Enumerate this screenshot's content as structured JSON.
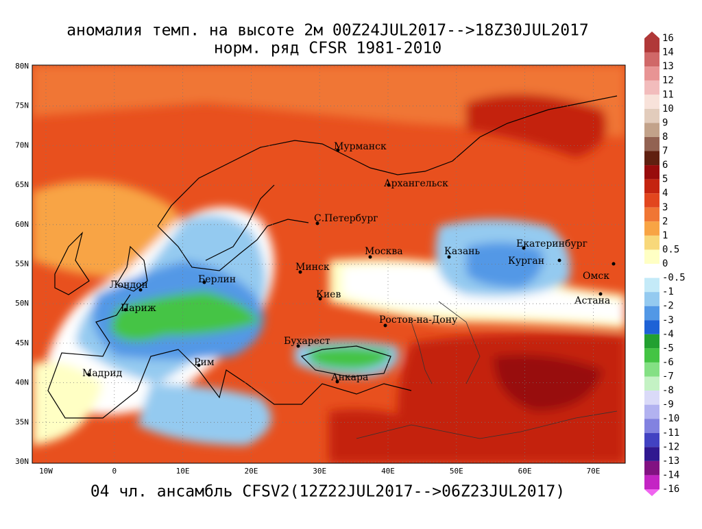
{
  "header": {
    "title_line1": "аномалия темп. на высоте 2м 00Z24JUL2017-->18Z30JUL2017",
    "title_line2": "норм. ряд CFSR 1981-2010"
  },
  "footer": "04 чл. ансамбль CFSV2(12Z22JUL2017-->06Z23JUL2017)",
  "lat_labels": [
    "80N",
    "75N",
    "70N",
    "65N",
    "60N",
    "55N",
    "50N",
    "45N",
    "40N",
    "35N",
    "30N"
  ],
  "lon_labels": [
    "10W",
    "0",
    "10E",
    "20E",
    "30E",
    "40E",
    "50E",
    "60E",
    "70E"
  ],
  "cities": [
    "Мурманск",
    "Архангельск",
    "С.Петербург",
    "Москва",
    "Казань",
    "Екатеринбург",
    "Курган",
    "Омск",
    "Астана",
    "Минск",
    "Киев",
    "Ростов-на-Дону",
    "Бухарест",
    "Анкара",
    "Берлин",
    "Лондон",
    "Париж",
    "Рим",
    "Мадрид"
  ],
  "colorbar": {
    "ticks": [
      16,
      14,
      13,
      12,
      11,
      10,
      9,
      8,
      7,
      6,
      5,
      4,
      3,
      2,
      1,
      0.5,
      0,
      -0.5,
      -1,
      -2,
      -3,
      -4,
      -5,
      -6,
      -7,
      -8,
      -9,
      -10,
      -11,
      -12,
      -13,
      -14,
      -16
    ],
    "colors": [
      "#b03838",
      "#d06868",
      "#e89494",
      "#f2bcbc",
      "#f8e2da",
      "#e2ccbc",
      "#c2a28a",
      "#926252",
      "#602010",
      "#980c0c",
      "#c42410",
      "#e2461e",
      "#f07634",
      "#f8a444",
      "#f8d87a",
      "#ffffc4",
      "#ffffff",
      "#c4eaf8",
      "#94caf0",
      "#5298e6",
      "#1e62d6",
      "#22a030",
      "#44c444",
      "#84e084",
      "#c4f2c4",
      "#dadaf8",
      "#b2b2f0",
      "#8282e0",
      "#4242c2",
      "#301890",
      "#821282",
      "#c424c4",
      "#f064f0"
    ]
  }
}
